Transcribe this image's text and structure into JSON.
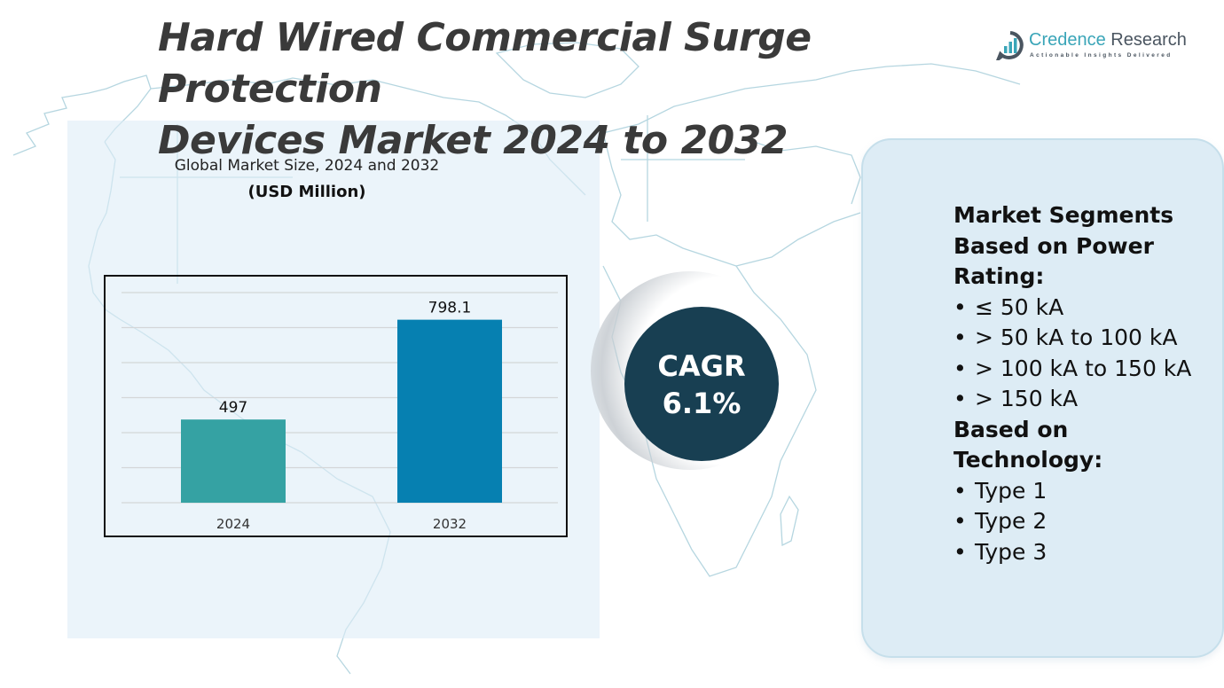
{
  "title": "Hard Wired Commercial Surge Protection Devices Market 2024 to 2032",
  "title_lines": [
    "Hard Wired Commercial Surge Protection",
    "Devices Market 2024 to 2032"
  ],
  "logo": {
    "name_part1": "Credence",
    "name_part2": " Research",
    "tagline": "Actionable Insights Delivered",
    "icon": "chart-bubble-icon"
  },
  "colors": {
    "bar_2024": "#35a2a3",
    "bar_2032": "#0680b1",
    "cagr_circle": "#183f52",
    "title_text": "#3a3a3a",
    "panel_right": "#ddecf5",
    "logo_accent": "#3aa5b8"
  },
  "chart_data": {
    "type": "bar",
    "title": "Global Market Size, 2024 and 2032",
    "subtitle": "(USD Million)",
    "categories": [
      "2024",
      "2032"
    ],
    "values": [
      497,
      798.1
    ],
    "data_labels": [
      "497",
      "798.1"
    ],
    "xlabel": "",
    "ylabel": "",
    "ylim": [
      246,
      880
    ],
    "grid": true,
    "gridline_count": 7,
    "legend": "none"
  },
  "cagr": {
    "label": "CAGR",
    "value": "6.1%"
  },
  "segments": {
    "heading_power": [
      "Market Segments",
      "Based on Power",
      "Rating:"
    ],
    "power_items": [
      "≤ 50 kA",
      "> 50 kA to 100 kA",
      "> 100 kA to 150 kA",
      "> 150 kA"
    ],
    "heading_tech": [
      "Based on",
      "Technology:"
    ],
    "tech_items": [
      "Type 1",
      "Type 2",
      "Type 3"
    ],
    "bullet": "•"
  }
}
